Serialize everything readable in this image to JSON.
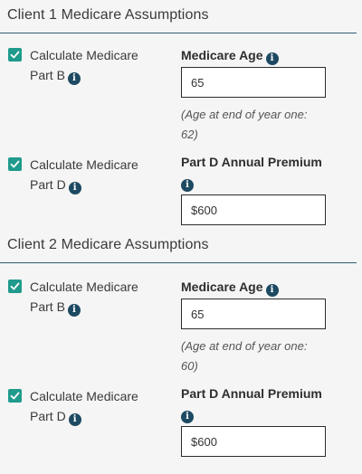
{
  "clients": [
    {
      "title": "Client 1 Medicare Assumptions",
      "part_b": {
        "checkbox_label_line1": "Calculate Medicare",
        "checkbox_label_line2": "Part B",
        "checked": true,
        "field_label": "Medicare Age",
        "field_value": "65",
        "note_line1": "(Age at end of year one:",
        "note_line2": "62)"
      },
      "part_d": {
        "checkbox_label_line1": "Calculate Medicare",
        "checkbox_label_line2": "Part D",
        "checked": true,
        "field_label": "Part D Annual Premium",
        "field_value": "$600"
      }
    },
    {
      "title": "Client 2 Medicare Assumptions",
      "part_b": {
        "checkbox_label_line1": "Calculate Medicare",
        "checkbox_label_line2": "Part B",
        "checked": true,
        "field_label": "Medicare Age",
        "field_value": "65",
        "note_line1": "(Age at end of year one:",
        "note_line2": "60)"
      },
      "part_d": {
        "checkbox_label_line1": "Calculate Medicare",
        "checkbox_label_line2": "Part D",
        "checked": true,
        "field_label": "Part D Annual Premium",
        "field_value": "$600"
      }
    }
  ],
  "icons": {
    "info": "info-icon",
    "check": "checkmark-icon"
  },
  "colors": {
    "checkbox": "#1f9a8c",
    "info_icon": "#1d4a62",
    "rule": "#2f5d74"
  }
}
